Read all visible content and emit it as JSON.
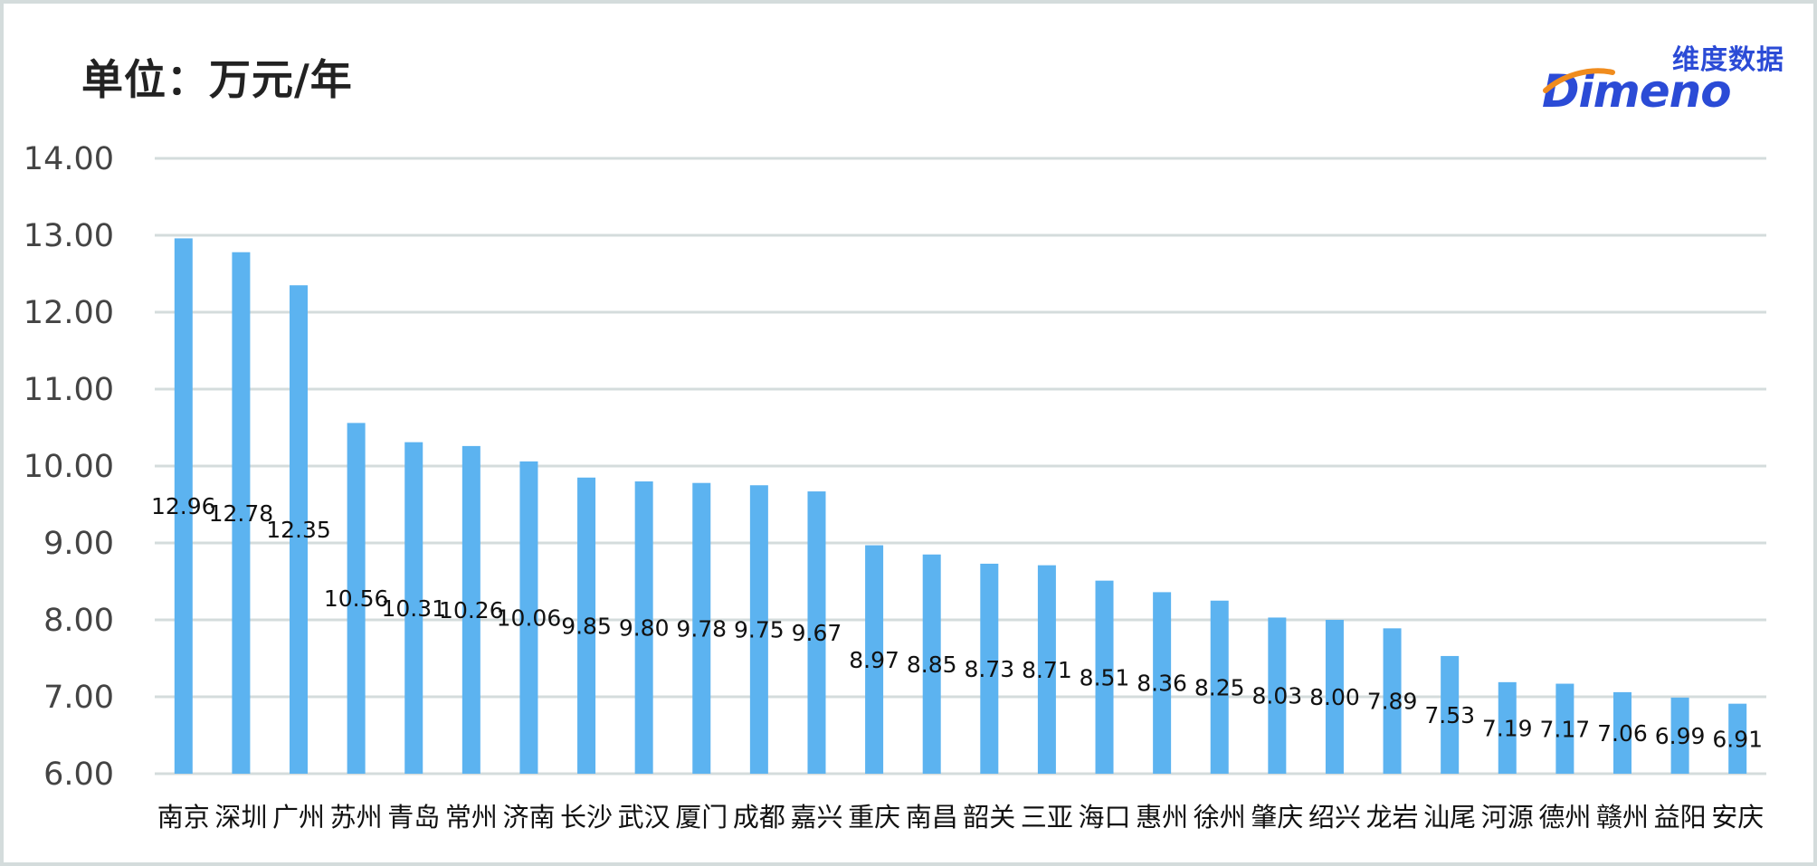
{
  "header": {
    "unit_title": "单位：万元/年"
  },
  "logo": {
    "cn_text": "维度数据",
    "en_text": "Dimeno",
    "color_primary": "#2b4bd6",
    "color_accent": "#f08c1e"
  },
  "chart_data": {
    "type": "bar",
    "title": "单位：万元/年",
    "xlabel": "",
    "ylabel": "",
    "ylim": [
      6,
      14
    ],
    "yticks": [
      "14.00",
      "13.00",
      "12.00",
      "11.00",
      "10.00",
      "9.00",
      "8.00",
      "7.00",
      "6.00"
    ],
    "grid": true,
    "legend": "none",
    "bar_color": "#5cb3f0",
    "categories": [
      "南京",
      "深圳",
      "广州",
      "苏州",
      "青岛",
      "常州",
      "济南",
      "长沙",
      "武汉",
      "厦门",
      "成都",
      "嘉兴",
      "重庆",
      "南昌",
      "韶关",
      "三亚",
      "海口",
      "惠州",
      "徐州",
      "肇庆",
      "绍兴",
      "龙岩",
      "汕尾",
      "河源",
      "德州",
      "赣州",
      "益阳",
      "安庆"
    ],
    "values": [
      12.96,
      12.78,
      12.35,
      10.56,
      10.31,
      10.26,
      10.06,
      9.85,
      9.8,
      9.78,
      9.75,
      9.67,
      8.97,
      8.85,
      8.73,
      8.71,
      8.51,
      8.36,
      8.25,
      8.03,
      8.0,
      7.89,
      7.53,
      7.19,
      7.17,
      7.06,
      6.99,
      6.91
    ],
    "data_labels": [
      "12.96",
      "12.78",
      "12.35",
      "10.56",
      "10.31",
      "10.26",
      "10.06",
      "9.85",
      "9.80",
      "9.78",
      "9.75",
      "9.67",
      "8.97",
      "8.85",
      "8.73",
      "8.71",
      "8.51",
      "8.36",
      "8.25",
      "8.03",
      "8.00",
      "7.89",
      "7.53",
      "7.19",
      "7.17",
      "7.06",
      "6.99",
      "6.91"
    ]
  }
}
